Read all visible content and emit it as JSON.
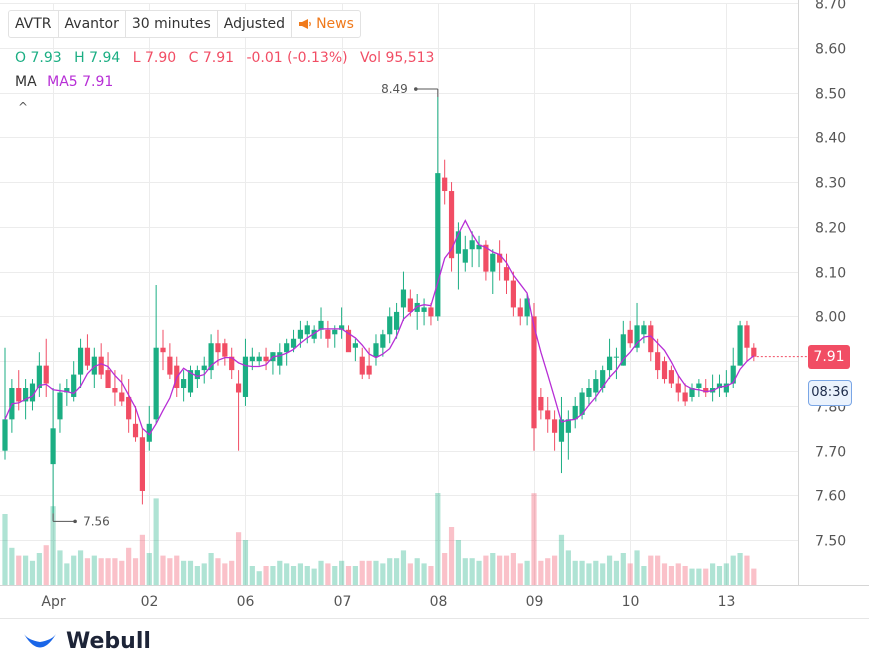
{
  "header": {
    "symbol": "AVTR",
    "name": "Avantor",
    "interval": "30 minutes",
    "adjust": "Adjusted",
    "news": "News"
  },
  "ohlc": {
    "o_label": "O",
    "o": "7.93",
    "h_label": "H",
    "h": "7.94",
    "l_label": "L",
    "l": "7.90",
    "c_label": "C",
    "c": "7.91",
    "change": "-0.01 (-0.13%)",
    "vol_label": "Vol",
    "vol": "95,513"
  },
  "ma": {
    "label": "MA",
    "value": "MA5 7.91"
  },
  "current": {
    "price": "7.91",
    "time": "08:36"
  },
  "brand": "Webull",
  "colors": {
    "up": "#1bae83",
    "down": "#f14d64",
    "ma": "#b72ed6",
    "grid": "#ececec"
  },
  "chart_data": {
    "type": "candlestick",
    "ylim": [
      7.4,
      8.7
    ],
    "y_ticks": [
      "7.50",
      "7.60",
      "7.70",
      "7.80",
      "7.90",
      "8.00",
      "8.10",
      "8.20",
      "8.30",
      "8.40",
      "8.50",
      "8.60",
      "8.70"
    ],
    "x_ticks": [
      {
        "label": "Apr",
        "index": 7
      },
      {
        "label": "02",
        "index": 21
      },
      {
        "label": "06",
        "index": 35
      },
      {
        "label": "07",
        "index": 49
      },
      {
        "label": "08",
        "index": 63
      },
      {
        "label": "09",
        "index": 77
      },
      {
        "label": "10",
        "index": 91
      },
      {
        "label": "13",
        "index": 105
      }
    ],
    "annotations": [
      {
        "text": "8.49",
        "index": 63,
        "value": 8.49,
        "side": "left"
      },
      {
        "text": "7.56",
        "index": 7,
        "value": 7.56,
        "side": "right"
      }
    ],
    "candles": [
      {
        "o": 7.7,
        "h": 7.93,
        "l": 7.68,
        "c": 7.77
      },
      {
        "o": 7.77,
        "h": 7.86,
        "l": 7.74,
        "c": 7.84
      },
      {
        "o": 7.84,
        "h": 7.88,
        "l": 7.79,
        "c": 7.81
      },
      {
        "o": 7.81,
        "h": 7.86,
        "l": 7.77,
        "c": 7.84
      },
      {
        "o": 7.81,
        "h": 7.86,
        "l": 7.79,
        "c": 7.85
      },
      {
        "o": 7.84,
        "h": 7.92,
        "l": 7.82,
        "c": 7.89
      },
      {
        "o": 7.89,
        "h": 7.95,
        "l": 7.82,
        "c": 7.85
      },
      {
        "o": 7.67,
        "h": 7.84,
        "l": 7.56,
        "c": 7.75
      },
      {
        "o": 7.77,
        "h": 7.85,
        "l": 7.74,
        "c": 7.83
      },
      {
        "o": 7.83,
        "h": 7.86,
        "l": 7.8,
        "c": 7.84
      },
      {
        "o": 7.82,
        "h": 7.9,
        "l": 7.81,
        "c": 7.87
      },
      {
        "o": 7.87,
        "h": 7.95,
        "l": 7.84,
        "c": 7.93
      },
      {
        "o": 7.93,
        "h": 7.96,
        "l": 7.88,
        "c": 7.89
      },
      {
        "o": 7.87,
        "h": 7.93,
        "l": 7.84,
        "c": 7.91
      },
      {
        "o": 7.91,
        "h": 7.94,
        "l": 7.86,
        "c": 7.87
      },
      {
        "o": 7.88,
        "h": 7.92,
        "l": 7.84,
        "c": 7.84
      },
      {
        "o": 7.84,
        "h": 7.88,
        "l": 7.8,
        "c": 7.83
      },
      {
        "o": 7.83,
        "h": 7.87,
        "l": 7.8,
        "c": 7.81
      },
      {
        "o": 7.82,
        "h": 7.86,
        "l": 7.74,
        "c": 7.77
      },
      {
        "o": 7.76,
        "h": 7.8,
        "l": 7.72,
        "c": 7.73
      },
      {
        "o": 7.73,
        "h": 7.75,
        "l": 7.58,
        "c": 7.61
      },
      {
        "o": 7.72,
        "h": 7.8,
        "l": 7.7,
        "c": 7.76
      },
      {
        "o": 7.77,
        "h": 8.07,
        "l": 7.76,
        "c": 7.93
      },
      {
        "o": 7.93,
        "h": 7.97,
        "l": 7.88,
        "c": 7.92
      },
      {
        "o": 7.91,
        "h": 7.94,
        "l": 7.86,
        "c": 7.87
      },
      {
        "o": 7.89,
        "h": 7.91,
        "l": 7.82,
        "c": 7.84
      },
      {
        "o": 7.84,
        "h": 7.88,
        "l": 7.81,
        "c": 7.86
      },
      {
        "o": 7.83,
        "h": 7.89,
        "l": 7.82,
        "c": 7.88
      },
      {
        "o": 7.86,
        "h": 7.89,
        "l": 7.84,
        "c": 7.88
      },
      {
        "o": 7.88,
        "h": 7.91,
        "l": 7.85,
        "c": 7.89
      },
      {
        "o": 7.88,
        "h": 7.96,
        "l": 7.86,
        "c": 7.94
      },
      {
        "o": 7.94,
        "h": 7.97,
        "l": 7.89,
        "c": 7.92
      },
      {
        "o": 7.94,
        "h": 7.95,
        "l": 7.89,
        "c": 7.91
      },
      {
        "o": 7.91,
        "h": 7.93,
        "l": 7.86,
        "c": 7.88
      },
      {
        "o": 7.85,
        "h": 7.88,
        "l": 7.7,
        "c": 7.83
      },
      {
        "o": 7.82,
        "h": 7.95,
        "l": 7.8,
        "c": 7.91
      },
      {
        "o": 7.9,
        "h": 7.93,
        "l": 7.88,
        "c": 7.91
      },
      {
        "o": 7.9,
        "h": 7.92,
        "l": 7.89,
        "c": 7.91
      },
      {
        "o": 7.91,
        "h": 7.93,
        "l": 7.88,
        "c": 7.9
      },
      {
        "o": 7.9,
        "h": 7.92,
        "l": 7.87,
        "c": 7.92
      },
      {
        "o": 7.89,
        "h": 7.94,
        "l": 7.87,
        "c": 7.92
      },
      {
        "o": 7.92,
        "h": 7.95,
        "l": 7.89,
        "c": 7.94
      },
      {
        "o": 7.93,
        "h": 7.97,
        "l": 7.92,
        "c": 7.95
      },
      {
        "o": 7.95,
        "h": 7.99,
        "l": 7.93,
        "c": 7.97
      },
      {
        "o": 7.96,
        "h": 7.99,
        "l": 7.94,
        "c": 7.98
      },
      {
        "o": 7.95,
        "h": 7.98,
        "l": 7.94,
        "c": 7.97
      },
      {
        "o": 7.97,
        "h": 8.02,
        "l": 7.95,
        "c": 7.99
      },
      {
        "o": 7.97,
        "h": 7.99,
        "l": 7.93,
        "c": 7.95
      },
      {
        "o": 7.96,
        "h": 7.98,
        "l": 7.93,
        "c": 7.97
      },
      {
        "o": 7.97,
        "h": 8.02,
        "l": 7.95,
        "c": 7.98
      },
      {
        "o": 7.97,
        "h": 7.98,
        "l": 7.93,
        "c": 7.92
      },
      {
        "o": 7.93,
        "h": 7.95,
        "l": 7.9,
        "c": 7.94
      },
      {
        "o": 7.91,
        "h": 7.93,
        "l": 7.86,
        "c": 7.87
      },
      {
        "o": 7.89,
        "h": 7.93,
        "l": 7.86,
        "c": 7.87
      },
      {
        "o": 7.91,
        "h": 7.96,
        "l": 7.89,
        "c": 7.94
      },
      {
        "o": 7.93,
        "h": 7.97,
        "l": 7.91,
        "c": 7.96
      },
      {
        "o": 7.96,
        "h": 8.02,
        "l": 7.94,
        "c": 8.0
      },
      {
        "o": 7.97,
        "h": 8.03,
        "l": 7.95,
        "c": 8.01
      },
      {
        "o": 8.02,
        "h": 8.1,
        "l": 7.99,
        "c": 8.06
      },
      {
        "o": 8.04,
        "h": 8.06,
        "l": 8.0,
        "c": 8.01
      },
      {
        "o": 8.01,
        "h": 8.05,
        "l": 7.97,
        "c": 8.03
      },
      {
        "o": 8.01,
        "h": 8.04,
        "l": 7.98,
        "c": 8.02
      },
      {
        "o": 8.02,
        "h": 8.03,
        "l": 7.98,
        "c": 8.0
      },
      {
        "o": 8.0,
        "h": 8.49,
        "l": 7.99,
        "c": 8.32
      },
      {
        "o": 8.31,
        "h": 8.35,
        "l": 8.25,
        "c": 8.28
      },
      {
        "o": 8.28,
        "h": 8.3,
        "l": 8.1,
        "c": 8.13
      },
      {
        "o": 8.14,
        "h": 8.21,
        "l": 8.06,
        "c": 8.19
      },
      {
        "o": 8.12,
        "h": 8.18,
        "l": 8.1,
        "c": 8.15
      },
      {
        "o": 8.15,
        "h": 8.19,
        "l": 8.11,
        "c": 8.17
      },
      {
        "o": 8.15,
        "h": 8.18,
        "l": 8.11,
        "c": 8.16
      },
      {
        "o": 8.16,
        "h": 8.17,
        "l": 8.08,
        "c": 8.1
      },
      {
        "o": 8.1,
        "h": 8.15,
        "l": 8.05,
        "c": 8.14
      },
      {
        "o": 8.14,
        "h": 8.17,
        "l": 8.08,
        "c": 8.12
      },
      {
        "o": 8.11,
        "h": 8.14,
        "l": 8.05,
        "c": 8.08
      },
      {
        "o": 8.08,
        "h": 8.1,
        "l": 8.0,
        "c": 8.02
      },
      {
        "o": 8.02,
        "h": 8.04,
        "l": 7.98,
        "c": 8.0
      },
      {
        "o": 8.0,
        "h": 8.05,
        "l": 7.98,
        "c": 8.04
      },
      {
        "o": 8.0,
        "h": 8.03,
        "l": 7.7,
        "c": 7.75
      },
      {
        "o": 7.82,
        "h": 7.84,
        "l": 7.77,
        "c": 7.79
      },
      {
        "o": 7.79,
        "h": 7.82,
        "l": 7.74,
        "c": 7.77
      },
      {
        "o": 7.77,
        "h": 7.79,
        "l": 7.7,
        "c": 7.74
      },
      {
        "o": 7.72,
        "h": 7.82,
        "l": 7.65,
        "c": 7.77
      },
      {
        "o": 7.74,
        "h": 7.79,
        "l": 7.68,
        "c": 7.77
      },
      {
        "o": 7.77,
        "h": 7.82,
        "l": 7.75,
        "c": 7.8
      },
      {
        "o": 7.78,
        "h": 7.84,
        "l": 7.77,
        "c": 7.83
      },
      {
        "o": 7.82,
        "h": 7.86,
        "l": 7.8,
        "c": 7.84
      },
      {
        "o": 7.83,
        "h": 7.88,
        "l": 7.81,
        "c": 7.86
      },
      {
        "o": 7.84,
        "h": 7.89,
        "l": 7.83,
        "c": 7.88
      },
      {
        "o": 7.88,
        "h": 7.95,
        "l": 7.86,
        "c": 7.91
      },
      {
        "o": 7.91,
        "h": 7.93,
        "l": 7.86,
        "c": 7.91
      },
      {
        "o": 7.89,
        "h": 7.99,
        "l": 7.89,
        "c": 7.96
      },
      {
        "o": 7.97,
        "h": 7.99,
        "l": 7.93,
        "c": 7.94
      },
      {
        "o": 7.93,
        "h": 8.03,
        "l": 7.92,
        "c": 7.98
      },
      {
        "o": 7.96,
        "h": 7.99,
        "l": 7.94,
        "c": 7.98
      },
      {
        "o": 7.98,
        "h": 7.99,
        "l": 7.9,
        "c": 7.92
      },
      {
        "o": 7.92,
        "h": 7.95,
        "l": 7.86,
        "c": 7.88
      },
      {
        "o": 7.9,
        "h": 7.91,
        "l": 7.85,
        "c": 7.86
      },
      {
        "o": 7.88,
        "h": 7.89,
        "l": 7.84,
        "c": 7.85
      },
      {
        "o": 7.85,
        "h": 7.87,
        "l": 7.81,
        "c": 7.83
      },
      {
        "o": 7.83,
        "h": 7.85,
        "l": 7.8,
        "c": 7.81
      },
      {
        "o": 7.82,
        "h": 7.85,
        "l": 7.81,
        "c": 7.84
      },
      {
        "o": 7.84,
        "h": 7.86,
        "l": 7.82,
        "c": 7.85
      },
      {
        "o": 7.84,
        "h": 7.86,
        "l": 7.82,
        "c": 7.83
      },
      {
        "o": 7.83,
        "h": 7.87,
        "l": 7.81,
        "c": 7.84
      },
      {
        "o": 7.84,
        "h": 7.87,
        "l": 7.82,
        "c": 7.85
      },
      {
        "o": 7.83,
        "h": 7.88,
        "l": 7.82,
        "c": 7.85
      },
      {
        "o": 7.85,
        "h": 7.93,
        "l": 7.84,
        "c": 7.89
      },
      {
        "o": 7.89,
        "h": 7.99,
        "l": 7.89,
        "c": 7.98
      },
      {
        "o": 7.98,
        "h": 7.99,
        "l": 7.9,
        "c": 7.93
      },
      {
        "o": 7.93,
        "h": 7.94,
        "l": 7.9,
        "c": 7.91
      }
    ]
  }
}
